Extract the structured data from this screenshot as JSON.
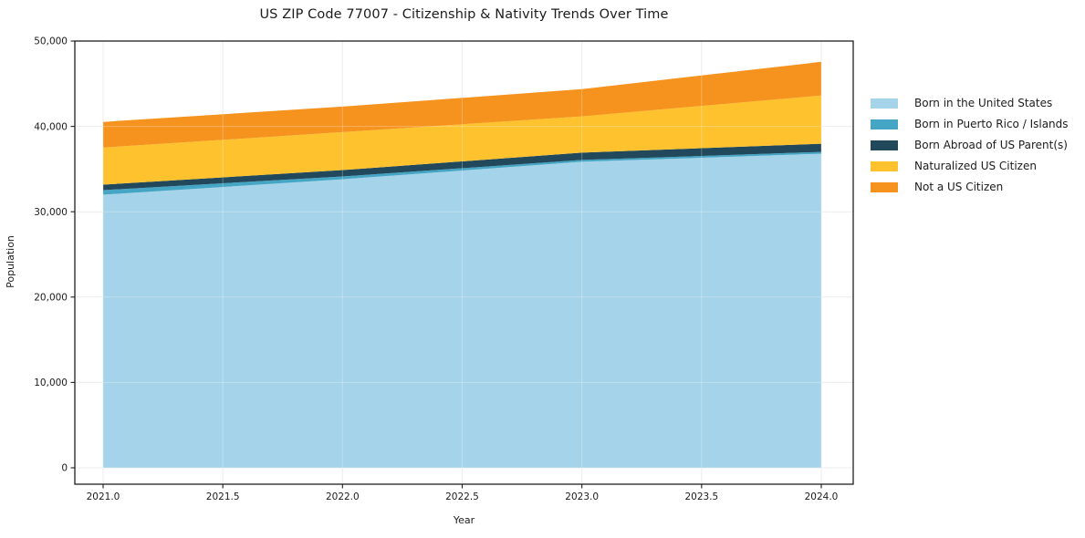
{
  "chart_data": {
    "type": "area",
    "stacked": true,
    "title": "US ZIP Code 77007 - Citizenship & Nativity Trends Over Time",
    "xlabel": "Year",
    "ylabel": "Population",
    "x": [
      2021,
      2022,
      2023,
      2024
    ],
    "series": [
      {
        "name": "Born in the United States",
        "color": "#A5D3E9",
        "values": [
          32000,
          33800,
          35850,
          36800
        ]
      },
      {
        "name": "Born in Puerto Rico / Islands",
        "color": "#45A5C5",
        "values": [
          530,
          330,
          220,
          210
        ]
      },
      {
        "name": "Born Abroad of US Parent(s)",
        "color": "#21495B",
        "values": [
          640,
          750,
          850,
          960
        ]
      },
      {
        "name": "Naturalized US Citizen",
        "color": "#FDC22E",
        "values": [
          4350,
          4450,
          4260,
          5650
        ]
      },
      {
        "name": "Not a US Citizen",
        "color": "#F6921E",
        "values": [
          3000,
          2990,
          3190,
          3940
        ]
      }
    ],
    "totals": [
      40520,
      42320,
      44370,
      47560
    ],
    "xticks": [
      2021.0,
      2021.5,
      2022.0,
      2022.5,
      2023.0,
      2023.5,
      2024.0
    ],
    "yticks": [
      0,
      10000,
      20000,
      30000,
      40000,
      50000
    ],
    "xtick_labels": [
      "2021.0",
      "2021.5",
      "2022.0",
      "2022.5",
      "2023.0",
      "2023.5",
      "2024.0"
    ],
    "ytick_labels": [
      "0",
      "10,000",
      "20,000",
      "30,000",
      "40,000",
      "50,000"
    ],
    "ylim": [
      0,
      50000
    ],
    "xlim": [
      2020.88,
      2024.13
    ],
    "grid": true,
    "legend_position": "right"
  },
  "colors": {
    "background": "#ffffff",
    "grid": "#e7e7e7",
    "grid_overlay": "rgba(255,255,255,0.28)",
    "spine": "#1f1f1f",
    "tick": "#1f1f1f",
    "text": "#1c1c1c"
  }
}
